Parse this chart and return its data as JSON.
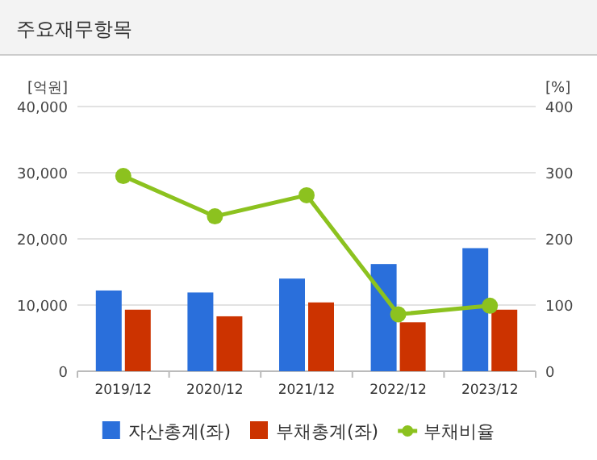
{
  "chart_data": {
    "type": "bar",
    "title": "주요재무항목",
    "ylabel": "[억원]",
    "y2label": "[%]",
    "categories": [
      "2019/12",
      "2020/12",
      "2021/12",
      "2022/12",
      "2023/12"
    ],
    "series": [
      {
        "name": "자산총계(좌)",
        "color": "#2a6fdb",
        "values": [
          12200,
          11900,
          14000,
          16200,
          18600
        ]
      },
      {
        "name": "부채총계(좌)",
        "color": "#cc3300",
        "values": [
          9300,
          8300,
          10400,
          7400,
          9300
        ]
      },
      {
        "name": "부채비율",
        "type": "line",
        "axis": "y2",
        "color": "#8cc21f",
        "values": [
          295,
          234,
          266,
          86,
          99
        ]
      }
    ],
    "ylim": [
      0,
      40000
    ],
    "yticks": [
      0,
      {
        "value": 10000,
        "label": "10,000"
      },
      {
        "value": 20000,
        "label": "20,000"
      },
      {
        "value": 30000,
        "label": "30,000"
      },
      {
        "value": 40000,
        "label": "40,000"
      }
    ],
    "y2lim": [
      0,
      400
    ],
    "y2ticks": [
      0,
      100,
      200,
      300,
      400
    ],
    "grid": "y",
    "legend": "bottom",
    "marker": "circle"
  }
}
